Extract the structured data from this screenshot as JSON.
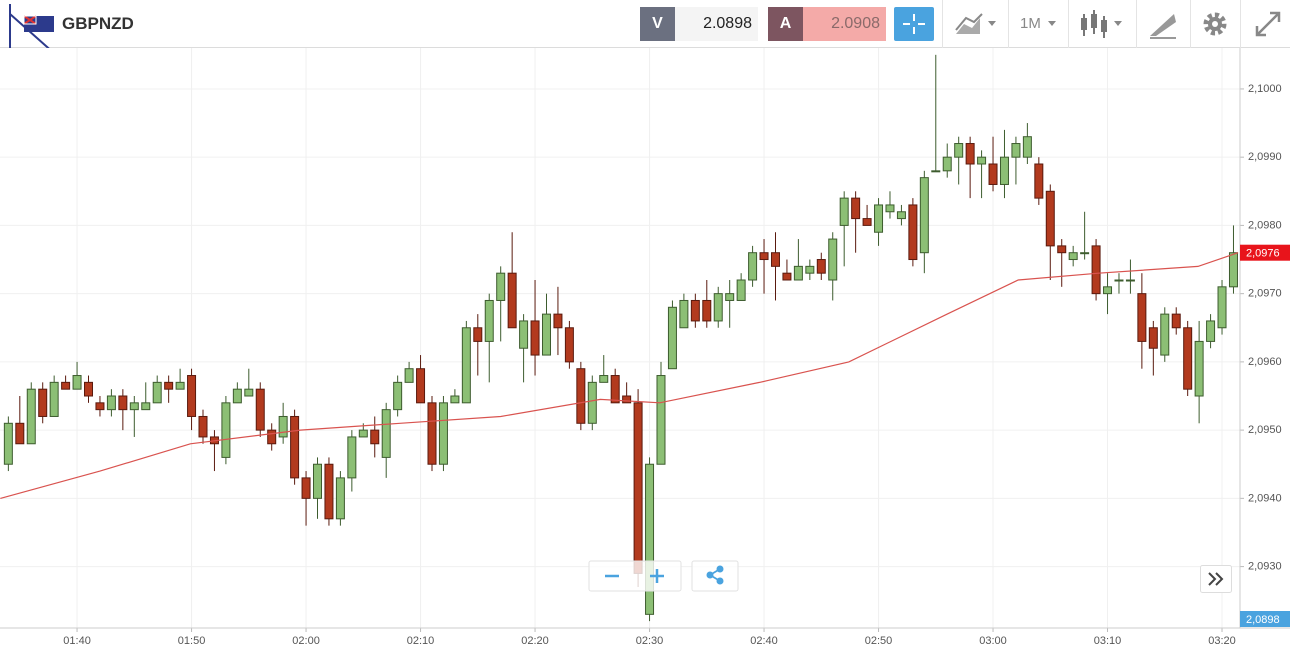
{
  "toolbar": {
    "symbol": "GBPNZD",
    "bid_label": "V",
    "bid": "2.0898",
    "ask_label": "A",
    "ask": "2.0908",
    "timeframe": "1M"
  },
  "chart_data": {
    "type": "candlestick",
    "up_color": "#8cbf75",
    "down_color": "#b23a1e",
    "x": [
      34,
      35,
      36,
      37,
      38,
      39,
      40,
      41,
      42,
      43,
      44,
      45,
      46,
      47,
      48,
      49,
      50,
      51,
      52,
      53,
      54,
      55,
      56,
      57,
      58,
      59,
      60,
      61,
      62,
      63,
      64,
      65,
      66,
      67,
      68,
      69,
      70,
      71,
      72,
      73,
      74,
      75,
      76,
      77,
      78,
      79,
      80,
      81,
      82,
      83,
      84,
      85,
      86,
      87,
      88,
      89,
      90,
      91,
      92,
      93,
      94,
      95,
      96,
      97,
      98,
      99,
      100,
      101,
      102,
      103,
      104,
      105,
      106,
      107,
      108,
      109,
      110,
      111,
      112,
      113,
      114,
      115,
      116,
      117,
      118,
      119,
      120,
      121,
      122,
      123,
      124,
      125,
      126,
      127,
      128,
      129,
      130,
      131,
      132,
      133,
      134,
      135,
      136,
      137,
      138,
      139,
      140,
      141
    ],
    "open": [
      2.0945,
      2.0951,
      2.0948,
      2.0956,
      2.0952,
      2.0957,
      2.0956,
      2.0957,
      2.0954,
      2.0953,
      2.0955,
      2.0953,
      2.0953,
      2.0954,
      2.0957,
      2.0956,
      2.0958,
      2.0952,
      2.0949,
      2.0946,
      2.0954,
      2.0955,
      2.0956,
      2.095,
      2.0949,
      2.0952,
      2.0943,
      2.094,
      2.0945,
      2.0937,
      2.0943,
      2.0949,
      2.095,
      2.0946,
      2.0953,
      2.0957,
      2.0959,
      2.0954,
      2.0945,
      2.0954,
      2.0954,
      2.0965,
      2.0963,
      2.0969,
      2.0973,
      2.0962,
      2.0966,
      2.0961,
      2.0967,
      2.0965,
      2.0959,
      2.0951,
      2.0957,
      2.0958,
      2.0955,
      2.0954,
      2.0923,
      2.0945,
      2.0959,
      2.0965,
      2.0969,
      2.0969,
      2.0966,
      2.0969,
      2.0969,
      2.0972,
      2.0976,
      2.0976,
      2.0973,
      2.0972,
      2.0973,
      2.0975,
      2.0972,
      2.098,
      2.0984,
      2.0981,
      2.0979,
      2.0982,
      2.0981,
      2.0983,
      2.0976,
      2.0988,
      2.0988,
      2.099,
      2.0992,
      2.0989,
      2.0989,
      2.0986,
      2.099,
      2.099,
      2.0989,
      2.0985,
      2.0977,
      2.0975,
      2.0976,
      2.0977,
      2.097,
      2.0972,
      2.0972,
      2.097,
      2.0965,
      2.0961,
      2.0967,
      2.0965,
      2.0955,
      2.0963,
      2.0965,
      2.0971
    ],
    "high": [
      2.0952,
      2.0955,
      2.0957,
      2.0957,
      2.0958,
      2.0958,
      2.096,
      2.0958,
      2.0955,
      2.0956,
      2.0956,
      2.0955,
      2.0957,
      2.0958,
      2.0958,
      2.0959,
      2.0959,
      2.0953,
      2.095,
      2.0955,
      2.0957,
      2.0959,
      2.0957,
      2.0951,
      2.0954,
      2.0953,
      2.0944,
      2.0946,
      2.0946,
      2.0944,
      2.095,
      2.0951,
      2.0952,
      2.0954,
      2.0958,
      2.096,
      2.0961,
      2.0955,
      2.0955,
      2.0956,
      2.0966,
      2.0967,
      2.097,
      2.0974,
      2.0979,
      2.0967,
      2.0972,
      2.097,
      2.0971,
      2.0966,
      2.096,
      2.0958,
      2.0961,
      2.0959,
      2.0957,
      2.0956,
      2.0946,
      2.096,
      2.0969,
      2.097,
      2.097,
      2.0972,
      2.0971,
      2.0972,
      2.0973,
      2.0977,
      2.0978,
      2.0979,
      2.0975,
      2.0978,
      2.0975,
      2.0976,
      2.0979,
      2.0985,
      2.0985,
      2.0983,
      2.0984,
      2.0985,
      2.0983,
      2.0984,
      2.0988,
      2.1005,
      2.0992,
      2.0993,
      2.0993,
      2.0991,
      2.0993,
      2.0994,
      2.0993,
      2.0995,
      2.099,
      2.0986,
      2.0978,
      2.0977,
      2.0982,
      2.0978,
      2.0973,
      2.0973,
      2.0975,
      2.0973,
      2.0966,
      2.0968,
      2.0968,
      2.0966,
      2.0966,
      2.0967,
      2.0972,
      2.098
    ],
    "low": [
      2.0944,
      2.0948,
      2.0948,
      2.0951,
      2.0952,
      2.0956,
      2.0956,
      2.0954,
      2.0952,
      2.0952,
      2.095,
      2.0949,
      2.0953,
      2.0954,
      2.0954,
      2.0956,
      2.095,
      2.0948,
      2.0944,
      2.0945,
      2.0954,
      2.0955,
      2.0949,
      2.0947,
      2.0948,
      2.0942,
      2.0936,
      2.0937,
      2.0936,
      2.0936,
      2.0941,
      2.0949,
      2.0946,
      2.0943,
      2.0952,
      2.0957,
      2.0954,
      2.0944,
      2.0944,
      2.0954,
      2.0954,
      2.0958,
      2.0957,
      2.0963,
      2.0965,
      2.0957,
      2.0958,
      2.0961,
      2.0961,
      2.0959,
      2.095,
      2.095,
      2.0957,
      2.0954,
      2.0954,
      2.0927,
      2.0922,
      2.0945,
      2.0959,
      2.0965,
      2.0965,
      2.0965,
      2.0965,
      2.0965,
      2.0969,
      2.0971,
      2.097,
      2.0969,
      2.0972,
      2.0972,
      2.0972,
      2.0972,
      2.0969,
      2.0974,
      2.0976,
      2.098,
      2.0977,
      2.0981,
      2.098,
      2.0974,
      2.0973,
      2.0988,
      2.0987,
      2.0986,
      2.0984,
      2.0984,
      2.0985,
      2.0984,
      2.0986,
      2.0989,
      2.0983,
      2.0972,
      2.0971,
      2.0974,
      2.0975,
      2.0969,
      2.0967,
      2.097,
      2.097,
      2.0959,
      2.0958,
      2.096,
      2.0964,
      2.0955,
      2.0951,
      2.0962,
      2.0964,
      2.097
    ],
    "close": [
      2.0951,
      2.0948,
      2.0956,
      2.0952,
      2.0957,
      2.0956,
      2.0958,
      2.0955,
      2.0953,
      2.0955,
      2.0953,
      2.0954,
      2.0954,
      2.0957,
      2.0956,
      2.0957,
      2.0952,
      2.0949,
      2.0948,
      2.0954,
      2.0956,
      2.0956,
      2.095,
      2.0948,
      2.0952,
      2.0943,
      2.094,
      2.0945,
      2.0937,
      2.0943,
      2.0949,
      2.095,
      2.0948,
      2.0953,
      2.0957,
      2.0959,
      2.0954,
      2.0945,
      2.0954,
      2.0955,
      2.0965,
      2.0963,
      2.0969,
      2.0973,
      2.0965,
      2.0966,
      2.0961,
      2.0967,
      2.0965,
      2.096,
      2.0951,
      2.0957,
      2.0958,
      2.0954,
      2.0954,
      2.0929,
      2.0945,
      2.0958,
      2.0968,
      2.0969,
      2.0966,
      2.0966,
      2.097,
      2.097,
      2.0972,
      2.0976,
      2.0975,
      2.0974,
      2.0972,
      2.0974,
      2.0974,
      2.0973,
      2.0978,
      2.0984,
      2.0981,
      2.098,
      2.0983,
      2.0983,
      2.0982,
      2.0975,
      2.0987,
      2.0988,
      2.099,
      2.0992,
      2.0989,
      2.099,
      2.0986,
      2.099,
      2.0992,
      2.0993,
      2.0984,
      2.0977,
      2.0976,
      2.0976,
      2.0976,
      2.097,
      2.0971,
      2.0972,
      2.0972,
      2.0963,
      2.0962,
      2.0967,
      2.0965,
      2.0956,
      2.0963,
      2.0966,
      2.0971,
      2.0976
    ],
    "moving_average": {
      "color": "#d9534f",
      "x": [
        33.3,
        42,
        49.9,
        59.5,
        68.2,
        77,
        85.7,
        90.9,
        99.6,
        107.4,
        116,
        122.2,
        129.2,
        137.9,
        141.4
      ],
      "values": [
        2.094,
        2.0944,
        2.0948,
        2.095,
        2.0951,
        2.0952,
        2.09545,
        2.0954,
        2.0957,
        2.096,
        2.0967,
        2.0972,
        2.0973,
        2.0974,
        2.0976
      ]
    },
    "xlim": [
      33.27,
      141.57
    ],
    "xticks": [
      {
        "value": 40,
        "label": "01:40"
      },
      {
        "value": 50,
        "label": "01:50"
      },
      {
        "value": 60,
        "label": "02:00"
      },
      {
        "value": 70,
        "label": "02:10"
      },
      {
        "value": 80,
        "label": "02:20"
      },
      {
        "value": 90,
        "label": "02:30"
      },
      {
        "value": 100,
        "label": "02:40"
      },
      {
        "value": 110,
        "label": "02:50"
      },
      {
        "value": 120,
        "label": "03:00"
      },
      {
        "value": 130,
        "label": "03:10"
      },
      {
        "value": 140,
        "label": "03:20"
      }
    ],
    "ylim": [
      2.0921,
      2.1006
    ],
    "yticks": [
      {
        "value": 2.1,
        "label": "2,1000"
      },
      {
        "value": 2.099,
        "label": "2,0990"
      },
      {
        "value": 2.098,
        "label": "2,0980"
      },
      {
        "value": 2.097,
        "label": "2,0970"
      },
      {
        "value": 2.096,
        "label": "2,0960"
      },
      {
        "value": 2.095,
        "label": "2,0950"
      },
      {
        "value": 2.094,
        "label": "2,0940"
      },
      {
        "value": 2.093,
        "label": "2,0930"
      }
    ],
    "grid": true,
    "price_tags": [
      {
        "value": 2.0976,
        "label": "2,0976",
        "color": "#e8141b"
      },
      {
        "value": 2.0898,
        "label": "2,0898",
        "color": "#4aa3df"
      }
    ]
  }
}
